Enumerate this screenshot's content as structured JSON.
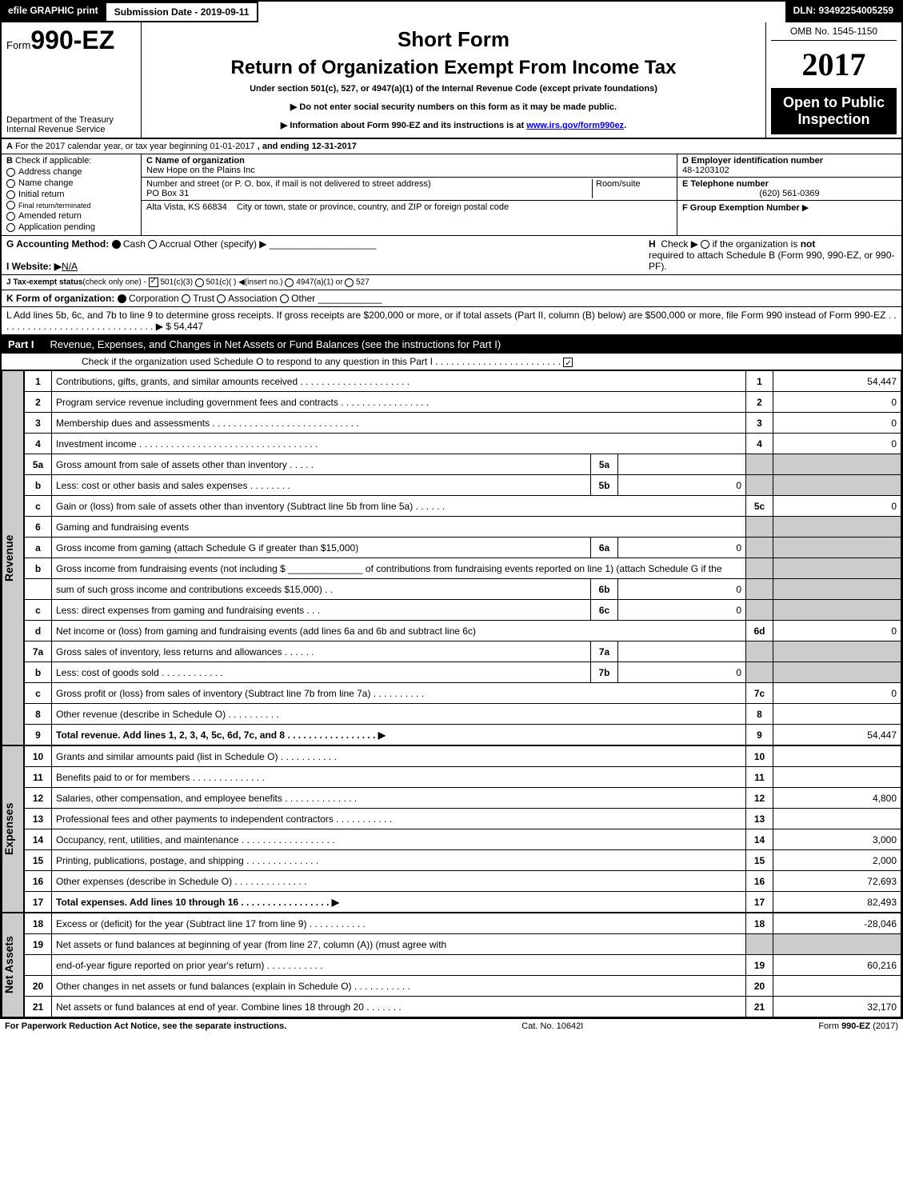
{
  "top": {
    "efile": "efile GRAPHIC print",
    "submission": "Submission Date - 2019-09-11",
    "dln": "DLN: 93492254005259"
  },
  "header": {
    "form_prefix": "Form",
    "form_num": "990-EZ",
    "dept": "Department of the Treasury",
    "irs": "Internal Revenue Service",
    "short_form": "Short Form",
    "title": "Return of Organization Exempt From Income Tax",
    "subtitle": "Under section 501(c), 527, or 4947(a)(1) of the Internal Revenue Code (except private foundations)",
    "note1": "▶ Do not enter social security numbers on this form as it may be made public.",
    "note2_a": "▶ Information about Form 990-EZ and its instructions is at ",
    "note2_link": "www.irs.gov/form990ez",
    "note2_b": ".",
    "omb": "OMB No. 1545-1150",
    "year": "2017",
    "open": "Open to Public Inspection"
  },
  "A": {
    "label_a": "A",
    "text": "For the 2017 calendar year, or tax year beginning 01-01-2017",
    "end": ", and ending 12-31-2017"
  },
  "B": {
    "label": "B",
    "title": "Check if applicable:",
    "items": [
      "Address change",
      "Name change",
      "Initial return",
      "Final return/terminated",
      "Amended return",
      "Application pending"
    ]
  },
  "C": {
    "label": "C Name of organization",
    "org": "New Hope on the Plains Inc",
    "addr_label": "Number and street (or P. O. box, if mail is not delivered to street address)",
    "room": "Room/suite",
    "addr": "PO Box 31",
    "city_label": "City or town, state or province, country, and ZIP or foreign postal code",
    "city": "Alta Vista, KS  66834"
  },
  "D": {
    "label": "D Employer identification number",
    "val": "48-1203102"
  },
  "E": {
    "label": "E Telephone number",
    "val": "(620) 561-0369"
  },
  "F": {
    "label": "F Group Exemption Number",
    "arrow": "▶"
  },
  "G": {
    "label": "G Accounting Method:",
    "cash": "Cash",
    "accrual": "Accrual",
    "other": "Other (specify) ▶"
  },
  "H": {
    "label": "H",
    "text1": "Check ▶",
    "text2": "if the organization is",
    "not": "not",
    "text3": "required to attach Schedule B (Form 990, 990-EZ, or 990-PF)."
  },
  "I": {
    "label": "I Website: ▶",
    "val": "N/A"
  },
  "J": {
    "label": "J Tax-exempt status",
    "text": "(check only one) -",
    "o1": "501(c)(3)",
    "o2": "501(c)(  ) ◀(insert no.)",
    "o3": "4947(a)(1) or",
    "o4": "527"
  },
  "K": {
    "label": "K Form of organization:",
    "corp": "Corporation",
    "trust": "Trust",
    "assoc": "Association",
    "other": "Other"
  },
  "L": {
    "text": "L Add lines 5b, 6c, and 7b to line 9 to determine gross receipts. If gross receipts are $200,000 or more, or if total assets (Part II, column (B) below) are $500,000 or more, file Form 990 instead of Form 990-EZ  .  .  .  .  .  .  .  .  .  .  .  .  .  .  .  .  .  .  .  .  .  .  .  .  .  .  .  .  .  .  ▶ $ 54,447"
  },
  "part1": {
    "label": "Part I",
    "title": "Revenue, Expenses, and Changes in Net Assets or Fund Balances (see the instructions for Part I)",
    "check": "Check if the organization used Schedule O to respond to any question in this Part I .  .  .  .  .  .  .  .  .  .  .  .  .  .  .  .  .  .  .  .  .  .  .  ."
  },
  "sides": {
    "rev": "Revenue",
    "exp": "Expenses",
    "net": "Net Assets"
  },
  "rows": [
    {
      "n": "1",
      "d": "Contributions, gifts, grants, and similar amounts received  .  .  .  .  .  .  .  .  .  .  .  .  .  .  .  .  .  .  .  .  .",
      "r": "1",
      "v": "54,447"
    },
    {
      "n": "2",
      "d": "Program service revenue including government fees and contracts .  .  .  .  .  .  .  .  .  .  .  .  .  .  .  .  .",
      "r": "2",
      "v": "0"
    },
    {
      "n": "3",
      "d": "Membership dues and assessments  .  .  .  .  .  .  .  .  .  .  .  .  .  .  .  .  .  .  .  .  .  .  .  .  .  .  .  .",
      "r": "3",
      "v": "0"
    },
    {
      "n": "4",
      "d": "Investment income  .  .  .  .  .  .  .  .  .  .  .  .  .  .  .  .  .  .  .  .  .  .  .  .  .  .  .  .  .  .  .  .  .  .",
      "r": "4",
      "v": "0"
    },
    {
      "n": "5a",
      "d": "Gross amount from sale of assets other than inventory  .  .  .  .  .",
      "sn": "5a",
      "sv": "",
      "grey": true
    },
    {
      "n": "b",
      "d": "Less: cost or other basis and sales expenses .  .  .  .  .  .  .  .",
      "sn": "5b",
      "sv": "0",
      "grey": true
    },
    {
      "n": "c",
      "d": "Gain or (loss) from sale of assets other than inventory (Subtract line 5b from line 5a)           .  .  .  .  .  .",
      "r": "5c",
      "v": "0"
    },
    {
      "n": "6",
      "d": "Gaming and fundraising events",
      "grey": true
    },
    {
      "n": "a",
      "d": "Gross income from gaming (attach Schedule G if greater than $15,000)",
      "sn": "6a",
      "sv": "0",
      "grey": true
    },
    {
      "n": "b",
      "d": "Gross income from fundraising events (not including $ ______________ of contributions from fundraising events reported on line 1) (attach Schedule G if the",
      "grey": true,
      "nospan": true
    },
    {
      "n": "",
      "d": "sum of such gross income and contributions exceeds $15,000)            .  .",
      "sn": "6b",
      "sv": "0",
      "grey": true
    },
    {
      "n": "c",
      "d": "Less: direct expenses from gaming and fundraising events           .  .  .",
      "sn": "6c",
      "sv": "0",
      "grey": true
    },
    {
      "n": "d",
      "d": "Net income or (loss) from gaming and fundraising events (add lines 6a and 6b and subtract line 6c)",
      "r": "6d",
      "v": "0"
    },
    {
      "n": "7a",
      "d": "Gross sales of inventory, less returns and allowances             .  .  .  .  .  .",
      "sn": "7a",
      "sv": "",
      "grey": true
    },
    {
      "n": "b",
      "d": "Less: cost of goods sold                     .  .  .  .  .  .  .  .  .  .  .  .",
      "sn": "7b",
      "sv": "0",
      "grey": true
    },
    {
      "n": "c",
      "d": "Gross profit or (loss) from sales of inventory (Subtract line 7b from line 7a)         .  .  .  .  .  .  .  .  .  .",
      "r": "7c",
      "v": "0"
    },
    {
      "n": "8",
      "d": "Other revenue (describe in Schedule O)                     .  .  .  .  .  .  .  .  .  .",
      "r": "8",
      "v": ""
    },
    {
      "n": "9",
      "d": "Total revenue. Add lines 1, 2, 3, 4, 5c, 6d, 7c, and 8           .  .  .  .  .  .  .  .  .  .  .  .  .  .  .  .  .  ▶",
      "r": "9",
      "v": "54,447",
      "bold": true
    }
  ],
  "exp_rows": [
    {
      "n": "10",
      "d": "Grants and similar amounts paid (list in Schedule O)              .  .  .  .  .  .  .  .  .  .  .",
      "r": "10",
      "v": ""
    },
    {
      "n": "11",
      "d": "Benefits paid to or for members                      .  .  .  .  .  .  .  .  .  .  .  .  .  .",
      "r": "11",
      "v": ""
    },
    {
      "n": "12",
      "d": "Salaries, other compensation, and employee benefits           .  .  .  .  .  .  .  .  .  .  .  .  .  .",
      "r": "12",
      "v": "4,800"
    },
    {
      "n": "13",
      "d": "Professional fees and other payments to independent contractors      .  .  .  .  .  .  .  .  .  .  .",
      "r": "13",
      "v": ""
    },
    {
      "n": "14",
      "d": "Occupancy, rent, utilities, and maintenance          .  .  .  .  .  .  .  .  .  .  .  .  .  .  .  .  .  .",
      "r": "14",
      "v": "3,000"
    },
    {
      "n": "15",
      "d": "Printing, publications, postage, and shipping              .  .  .  .  .  .  .  .  .  .  .  .  .  .",
      "r": "15",
      "v": "2,000"
    },
    {
      "n": "16",
      "d": "Other expenses (describe in Schedule O)               .  .  .  .  .  .  .  .  .  .  .  .  .  .",
      "r": "16",
      "v": "72,693"
    },
    {
      "n": "17",
      "d": "Total expenses. Add lines 10 through 16              .  .  .  .  .  .  .  .  .  .  .  .  .  .  .  .  .  ▶",
      "r": "17",
      "v": "82,493",
      "bold": true
    }
  ],
  "net_rows": [
    {
      "n": "18",
      "d": "Excess or (deficit) for the year (Subtract line 17 from line 9)           .  .  .  .  .  .  .  .  .  .  .",
      "r": "18",
      "v": "-28,046"
    },
    {
      "n": "19",
      "d": "Net assets or fund balances at beginning of year (from line 27, column (A)) (must agree with",
      "grey": true,
      "nospan": true
    },
    {
      "n": "",
      "d": "end-of-year figure reported on prior year's return)              .  .  .  .  .  .  .  .  .  .  .",
      "r": "19",
      "v": "60,216"
    },
    {
      "n": "20",
      "d": "Other changes in net assets or fund balances (explain in Schedule O)      .  .  .  .  .  .  .  .  .  .  .",
      "r": "20",
      "v": ""
    },
    {
      "n": "21",
      "d": "Net assets or fund balances at end of year. Combine lines 18 through 20        .  .  .  .  .  .  .",
      "r": "21",
      "v": "32,170"
    }
  ],
  "footer": {
    "left": "For Paperwork Reduction Act Notice, see the separate instructions.",
    "mid": "Cat. No. 10642I",
    "right": "Form 990-EZ (2017)"
  },
  "colors": {
    "black": "#000000",
    "grey": "#cccccc",
    "link": "#0000ee"
  }
}
